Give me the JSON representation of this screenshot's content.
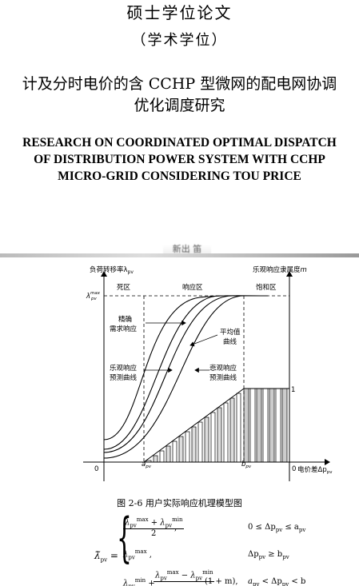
{
  "header": {
    "thesis_type": "硕士学位论文",
    "degree": "（学术学位）",
    "title_cn_line1": "计及分时电价的含 CCHP 型微网的配电网协调",
    "title_cn_line2": "优化调度研究",
    "title_en_line1": "RESEARCH ON COORDINATED OPTIMAL DISPATCH",
    "title_en_line2": "OF DISTRIBUTION POWER SYSTEM WITH CCHP",
    "title_en_line3": "MICRO-GRID CONSIDERING TOU PRICE"
  },
  "smudge_text": "新出 笛",
  "figure": {
    "y_axis_left_label": "负荷转移率λ",
    "y_axis_left_sub": "pv",
    "y_axis_right_label": "乐观响应隶属度",
    "y_axis_right_var": "m",
    "zone_dead": "死区",
    "zone_response": "响应区",
    "zone_saturation": "饱和区",
    "lambda_max": "λ",
    "lambda_max_sub": "pv",
    "lambda_max_sup": "max",
    "label_accurate_1": "精确",
    "label_accurate_2": "需求响应",
    "label_average_1": "平均值",
    "label_average_2": "曲线",
    "label_optimistic_1": "乐观响应",
    "label_optimistic_2": "预测曲线",
    "label_pessimistic_1": "悲观响应",
    "label_pessimistic_2": "预测曲线",
    "tick_one": "1",
    "origin_left": "0",
    "origin_right": "0",
    "a_pv": "a",
    "b_pv": "b",
    "pv_sub": "pv",
    "x_axis_label": "电价差Δp",
    "x_axis_sub": "pv",
    "caption": "图 2-6 用户实际响应机理模型图"
  },
  "formula": {
    "lhs": "λ̃",
    "lhs_sub": "pv",
    "case1_cond": "0 ≤ Δp",
    "case1_cond_end": "≤ a",
    "case2_cond": "Δp",
    "case2_cond_end": "≥ b",
    "case3_tail": "(1 + m),",
    "case3_cond": "a",
    "case3_cond_mid": "< Δp",
    "case3_cond_end": "< b",
    "two": "2",
    "comma": ","
  }
}
